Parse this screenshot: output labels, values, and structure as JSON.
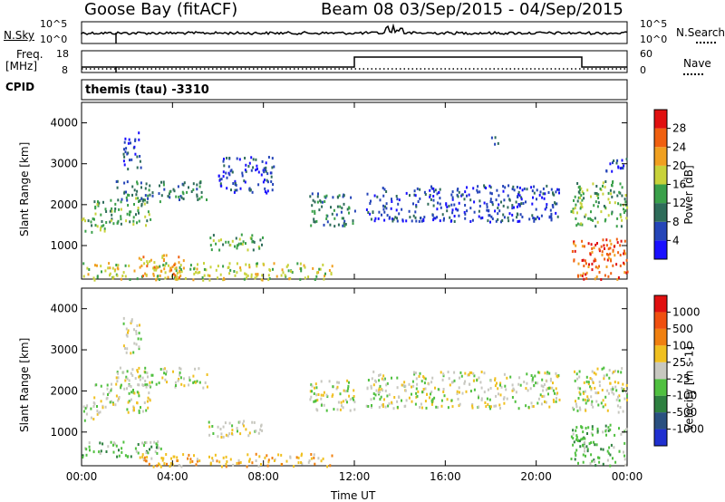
{
  "header": {
    "station": "Goose Bay (fitACF)",
    "beam_date": "Beam 08  03/Sep/2015 - 04/Sep/2015"
  },
  "noise_panel": {
    "label_left": "N.Sky",
    "label_right": "N.Search",
    "left_ticks": [
      "10^5",
      "10^0"
    ],
    "right_ticks": [
      "10^5",
      "10^0"
    ]
  },
  "freq_panel": {
    "label_left_line1": "Freq.",
    "label_left_line2": "[MHz]",
    "label_right": "Nave",
    "left_ticks": [
      "18",
      "8"
    ],
    "right_ticks": [
      "60",
      "0"
    ]
  },
  "cpid": {
    "label": "CPID",
    "program": "themis (tau) -3310"
  },
  "chart_data": [
    {
      "type": "heatmap",
      "name": "power",
      "ylabel": "Slant Range [km]",
      "xlabel": "Time UT",
      "x_ticks": [
        "00:00",
        "04:00",
        "08:00",
        "12:00",
        "16:00",
        "20:00",
        "00:00"
      ],
      "y_ticks": [
        "1000",
        "2000",
        "3000",
        "4000"
      ],
      "ylim": [
        180,
        4500
      ],
      "xlim_hours": [
        0,
        24
      ],
      "colorbar_label": "Power [dB]",
      "colorbar_ticks": [
        "4",
        "8",
        "12",
        "16",
        "20",
        "24",
        "28"
      ],
      "colorbar_colors": [
        "#1a10ff",
        "#2545b8",
        "#2e6c5a",
        "#3aa04a",
        "#c8d23a",
        "#f0a020",
        "#f06010",
        "#e01010"
      ],
      "scatter_regions": [
        {
          "t": [
            0.0,
            1.0
          ],
          "r": [
            1300,
            1700
          ],
          "level": 3
        },
        {
          "t": [
            0.5,
            3.0
          ],
          "r": [
            1500,
            2200
          ],
          "level": 3
        },
        {
          "t": [
            1.5,
            5.5
          ],
          "r": [
            2100,
            2600
          ],
          "level": 2
        },
        {
          "t": [
            1.8,
            2.6
          ],
          "r": [
            2900,
            3800
          ],
          "level": 1
        },
        {
          "t": [
            5.5,
            8.0
          ],
          "r": [
            900,
            1300
          ],
          "level": 3
        },
        {
          "t": [
            6.0,
            8.5
          ],
          "r": [
            2300,
            3200
          ],
          "level": 1
        },
        {
          "t": [
            0.0,
            11.0
          ],
          "r": [
            180,
            600
          ],
          "level": 4
        },
        {
          "t": [
            2.5,
            4.5
          ],
          "r": [
            200,
            800
          ],
          "level": 5
        },
        {
          "t": [
            10.0,
            12.0
          ],
          "r": [
            1500,
            2300
          ],
          "level": 2
        },
        {
          "t": [
            12.5,
            21.0
          ],
          "r": [
            1600,
            2500
          ],
          "level": 1
        },
        {
          "t": [
            18.0,
            18.5
          ],
          "r": [
            3500,
            3700
          ],
          "level": 1
        },
        {
          "t": [
            21.5,
            24.0
          ],
          "r": [
            1500,
            2600
          ],
          "level": 3
        },
        {
          "t": [
            21.5,
            24.0
          ],
          "r": [
            200,
            1200
          ],
          "level": 6
        },
        {
          "t": [
            23.0,
            24.0
          ],
          "r": [
            2800,
            3200
          ],
          "level": 1
        }
      ]
    },
    {
      "type": "heatmap",
      "name": "velocity",
      "ylabel": "Slant Range [km]",
      "xlabel": "Time UT",
      "x_ticks": [
        "00:00",
        "04:00",
        "08:00",
        "12:00",
        "16:00",
        "20:00",
        "00:00"
      ],
      "y_ticks": [
        "1000",
        "2000",
        "3000",
        "4000"
      ],
      "ylim": [
        180,
        4500
      ],
      "xlim_hours": [
        0,
        24
      ],
      "colorbar_label": "Velocity [m s-1]",
      "colorbar_ticks": [
        "1000",
        "500",
        "100",
        "25",
        "-25",
        "-100",
        "-500",
        "-1000"
      ],
      "colorbar_colors": [
        "#2030d0",
        "#2a5080",
        "#2e8040",
        "#50c040",
        "#c8c8c0",
        "#f0c020",
        "#f08010",
        "#f05010",
        "#e01010"
      ],
      "scatter_regions": [
        {
          "t": [
            0.0,
            1.0
          ],
          "r": [
            1300,
            1700
          ],
          "level": 4
        },
        {
          "t": [
            0.5,
            3.0
          ],
          "r": [
            1500,
            2200
          ],
          "level": 4
        },
        {
          "t": [
            1.5,
            5.5
          ],
          "r": [
            2100,
            2600
          ],
          "level": 4
        },
        {
          "t": [
            1.8,
            2.6
          ],
          "r": [
            2900,
            3800
          ],
          "level": 4
        },
        {
          "t": [
            5.5,
            8.0
          ],
          "r": [
            900,
            1300
          ],
          "level": 4
        },
        {
          "t": [
            0.0,
            3.5
          ],
          "r": [
            400,
            800
          ],
          "level": 3
        },
        {
          "t": [
            2.5,
            11.0
          ],
          "r": [
            180,
            500
          ],
          "level": 5
        },
        {
          "t": [
            10.0,
            12.0
          ],
          "r": [
            1500,
            2300
          ],
          "level": 4
        },
        {
          "t": [
            12.5,
            21.0
          ],
          "r": [
            1600,
            2500
          ],
          "level": 4
        },
        {
          "t": [
            21.5,
            24.0
          ],
          "r": [
            1500,
            2600
          ],
          "level": 4
        },
        {
          "t": [
            21.5,
            24.0
          ],
          "r": [
            200,
            1200
          ],
          "level": 3
        }
      ]
    }
  ]
}
